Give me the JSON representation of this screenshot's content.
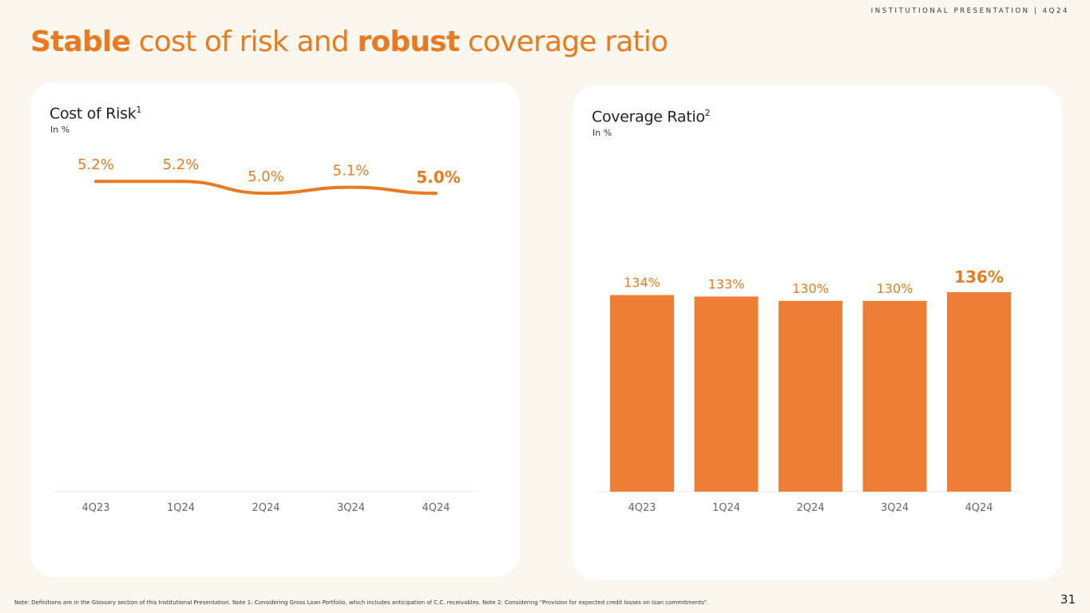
{
  "header": {
    "tag": "INSTITUTIONAL PRESENTATION | 4Q24"
  },
  "title": {
    "part1": "Stable",
    "part2": " cost of risk and ",
    "part3": "robust",
    "part4": " coverage ratio"
  },
  "colors": {
    "accent": "#e97a1f",
    "bar": "#ee7d35",
    "background": "#fcf7ee",
    "card": "#ffffff"
  },
  "chart_data": [
    {
      "type": "line",
      "title": "Cost of Risk",
      "title_sup": "1",
      "subtitle": "In %",
      "categories": [
        "4Q23",
        "1Q24",
        "2Q24",
        "3Q24",
        "4Q24"
      ],
      "values": [
        5.2,
        5.2,
        5.0,
        5.1,
        5.0
      ],
      "labels": [
        "5.2%",
        "5.2%",
        "5.0%",
        "5.1%",
        "5.0%"
      ],
      "highlight_last": true,
      "ylim": [
        0,
        6.5
      ]
    },
    {
      "type": "bar",
      "title": "Coverage Ratio",
      "title_sup": "2",
      "subtitle": "In %",
      "categories": [
        "4Q23",
        "1Q24",
        "2Q24",
        "3Q24",
        "4Q24"
      ],
      "values": [
        134,
        133,
        130,
        130,
        136
      ],
      "labels": [
        "134%",
        "133%",
        "130%",
        "130%",
        "136%"
      ],
      "highlight_last": true,
      "ylim": [
        0,
        136
      ]
    }
  ],
  "footer": {
    "note": "Note: Definitions are in the Glossary section of this Institutional Presentation. Note 1: Considering Gross Loan Portfolio, which includes anticipation of C.C. receivables. Note 2: Considering \"Provision for expected credit losses on loan commitments\".",
    "page": "31"
  }
}
